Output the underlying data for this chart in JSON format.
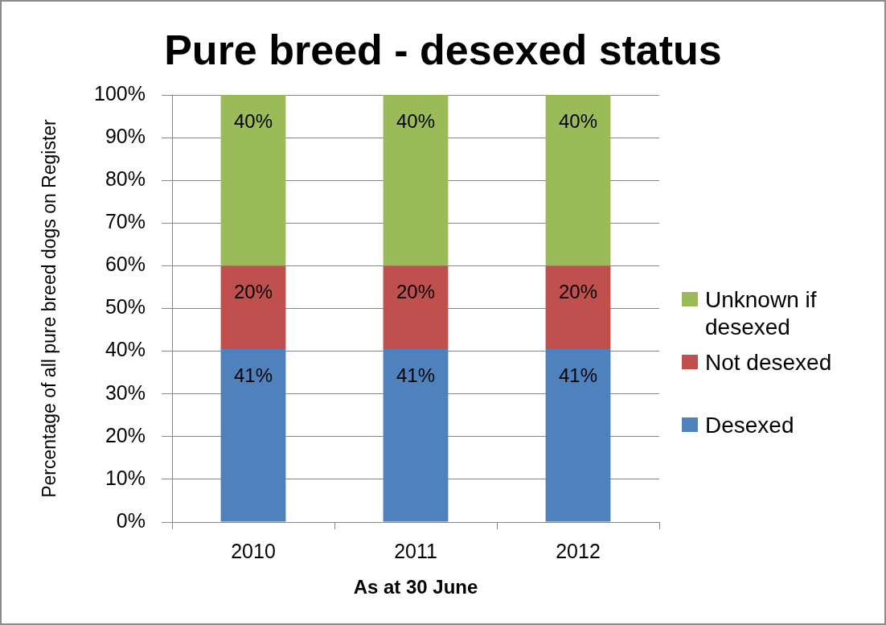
{
  "chart_data": {
    "type": "bar",
    "title": "Pure breed - desexed status",
    "xlabel": "As at 30 June",
    "ylabel": "Percentage of all pure breed dogs on Register",
    "categories": [
      "2010",
      "2011",
      "2012"
    ],
    "stacked": true,
    "series": [
      {
        "name": "Desexed",
        "color": "#4f81bd",
        "values": [
          40.5,
          40.5,
          40.5
        ],
        "value_labels": [
          "41%",
          "41%",
          "41%"
        ]
      },
      {
        "name": "Not desexed",
        "color": "#c0504d",
        "values": [
          19.5,
          19.5,
          19.5
        ],
        "value_labels": [
          "20%",
          "20%",
          "20%"
        ]
      },
      {
        "name": "Unknown if desexed",
        "color": "#9bbb59",
        "values": [
          40,
          40,
          40
        ],
        "value_labels": [
          "40%",
          "40%",
          "40%"
        ]
      }
    ],
    "ylim": [
      0,
      100
    ],
    "yticks": [
      {
        "value": 0,
        "label": "0%"
      },
      {
        "value": 10,
        "label": "10%"
      },
      {
        "value": 20,
        "label": "20%"
      },
      {
        "value": 30,
        "label": "30%"
      },
      {
        "value": 40,
        "label": "40%"
      },
      {
        "value": 50,
        "label": "50%"
      },
      {
        "value": 60,
        "label": "60%"
      },
      {
        "value": 70,
        "label": "70%"
      },
      {
        "value": 80,
        "label": "80%"
      },
      {
        "value": 90,
        "label": "90%"
      },
      {
        "value": 100,
        "label": "100%"
      }
    ],
    "grid": "y",
    "legend": "right"
  }
}
